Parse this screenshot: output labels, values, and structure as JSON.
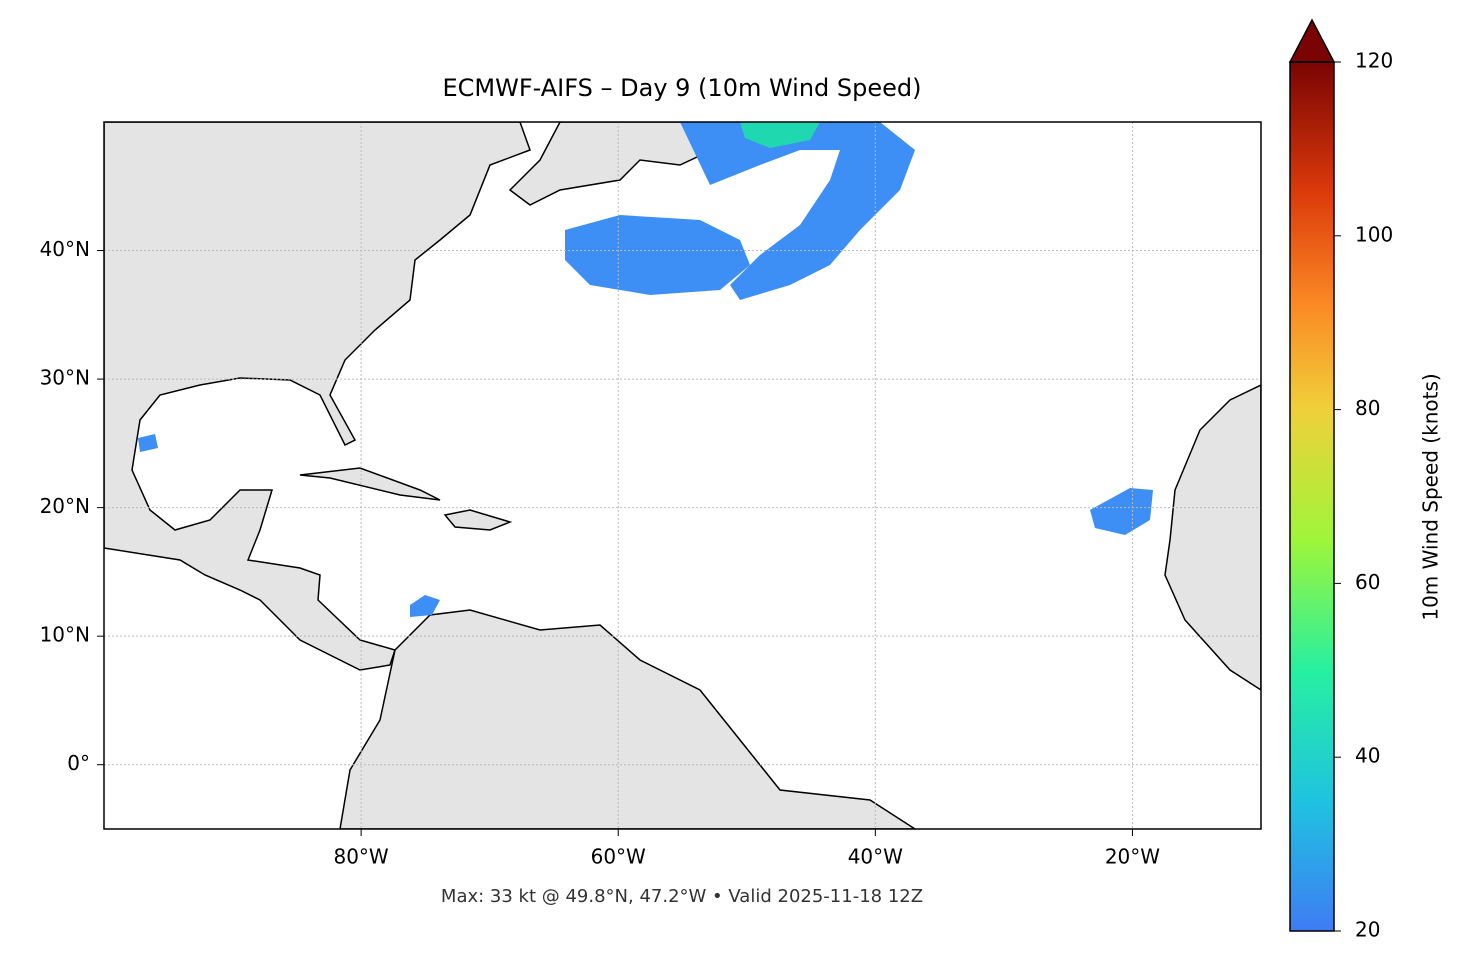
{
  "chart_data": {
    "type": "map",
    "title": "ECMWF-AIFS – Day 9 (10m Wind Speed)",
    "note": "Max: 33 kt @ 49.8°N, 47.2°W • Valid 2025-11-18 12Z",
    "xlim": [
      -100,
      -10
    ],
    "ylim": [
      -5,
      50
    ],
    "xticks": [
      {
        "value": -80,
        "label": "80°W"
      },
      {
        "value": -60,
        "label": "60°W"
      },
      {
        "value": -40,
        "label": "40°W"
      },
      {
        "value": -20,
        "label": "20°W"
      }
    ],
    "yticks": [
      {
        "value": 0,
        "label": "0°"
      },
      {
        "value": 10,
        "label": "10°N"
      },
      {
        "value": 20,
        "label": "20°N"
      },
      {
        "value": 30,
        "label": "30°N"
      },
      {
        "value": 40,
        "label": "40°N"
      }
    ],
    "grid": true,
    "colorbar": {
      "label": "10m Wind Speed (knots)",
      "lim": [
        20,
        120
      ],
      "ticks": [
        20,
        40,
        60,
        80,
        100,
        120
      ]
    }
  }
}
